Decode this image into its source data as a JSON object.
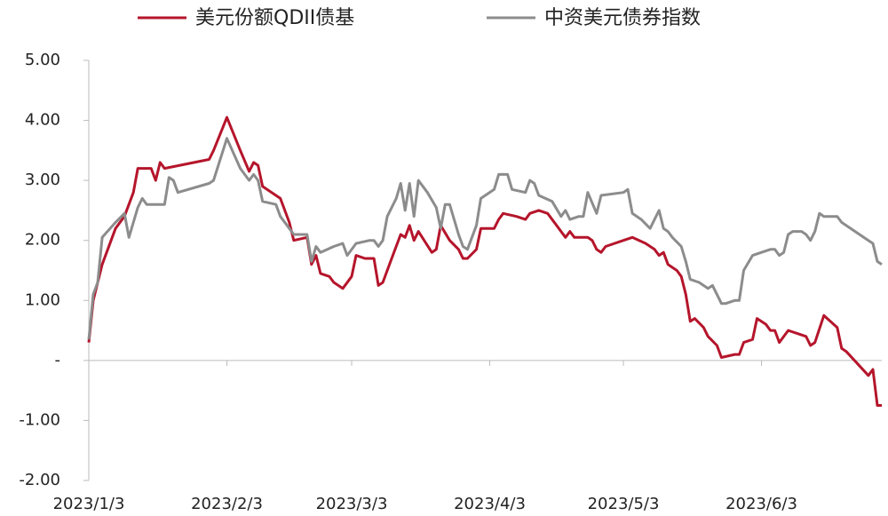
{
  "chart_data": {
    "type": "line",
    "xlim": [
      "2023/1/3",
      "2023/6/30"
    ],
    "xticks": [
      "2023/1/3",
      "2023/2/3",
      "2023/3/3",
      "2023/4/3",
      "2023/5/3",
      "2023/6/3"
    ],
    "ylim": [
      -2,
      5
    ],
    "yticks": [
      {
        "value": 5,
        "label": "5.00"
      },
      {
        "value": 4,
        "label": "4.00"
      },
      {
        "value": 3,
        "label": "3.00"
      },
      {
        "value": 2,
        "label": "2.00"
      },
      {
        "value": 1,
        "label": "1.00"
      },
      {
        "value": 0,
        "label": "-"
      },
      {
        "value": -1,
        "label": "-1.00"
      },
      {
        "value": -2,
        "label": "-2.00"
      }
    ],
    "legend": "top",
    "series": [
      {
        "name": "美元份额QDII债基",
        "color": "#b5152b",
        "x": [
          "2023/1/3",
          "2023/1/4",
          "2023/1/6",
          "2023/1/9",
          "2023/1/11",
          "2023/1/13",
          "2023/1/14",
          "2023/1/17",
          "2023/1/18",
          "2023/1/19",
          "2023/1/20",
          "2023/1/30",
          "2023/1/31",
          "2023/2/3",
          "2023/2/6",
          "2023/2/8",
          "2023/2/9",
          "2023/2/10",
          "2023/2/11",
          "2023/2/14",
          "2023/2/15",
          "2023/2/17",
          "2023/2/18",
          "2023/2/21",
          "2023/2/22",
          "2023/2/23",
          "2023/2/24",
          "2023/2/26",
          "2023/2/27",
          "2023/3/1",
          "2023/3/3",
          "2023/3/4",
          "2023/3/6",
          "2023/3/8",
          "2023/3/9",
          "2023/3/10",
          "2023/3/12",
          "2023/3/14",
          "2023/3/15",
          "2023/3/16",
          "2023/3/17",
          "2023/3/18",
          "2023/3/21",
          "2023/3/22",
          "2023/3/23",
          "2023/3/25",
          "2023/3/27",
          "2023/3/28",
          "2023/3/29",
          "2023/3/31",
          "2023/4/1",
          "2023/4/4",
          "2023/4/5",
          "2023/4/6",
          "2023/4/9",
          "2023/4/11",
          "2023/4/12",
          "2023/4/14",
          "2023/4/16",
          "2023/4/18",
          "2023/4/20",
          "2023/4/21",
          "2023/4/22",
          "2023/4/25",
          "2023/4/26",
          "2023/4/27",
          "2023/4/28",
          "2023/4/29",
          "2023/5/3",
          "2023/5/5",
          "2023/5/8",
          "2023/5/10",
          "2023/5/11",
          "2023/5/12",
          "2023/5/13",
          "2023/5/15",
          "2023/5/16",
          "2023/5/17",
          "2023/5/18",
          "2023/5/19",
          "2023/5/21",
          "2023/5/22",
          "2023/5/24",
          "2023/5/25",
          "2023/5/28",
          "2023/5/29",
          "2023/5/30",
          "2023/6/1",
          "2023/6/2",
          "2023/6/4",
          "2023/6/5",
          "2023/6/6",
          "2023/6/7",
          "2023/6/9",
          "2023/6/11",
          "2023/6/13",
          "2023/6/14",
          "2023/6/15",
          "2023/6/17",
          "2023/6/20",
          "2023/6/21",
          "2023/6/22",
          "2023/6/27",
          "2023/6/28",
          "2023/6/29",
          "2023/6/30"
        ],
        "values": [
          0.3,
          1.0,
          1.6,
          2.2,
          2.4,
          2.8,
          3.2,
          3.2,
          3.0,
          3.3,
          3.2,
          3.35,
          3.5,
          4.05,
          3.5,
          3.15,
          3.3,
          3.25,
          2.9,
          2.75,
          2.7,
          2.3,
          2.0,
          2.05,
          1.6,
          1.75,
          1.45,
          1.4,
          1.3,
          1.2,
          1.4,
          1.75,
          1.7,
          1.7,
          1.25,
          1.3,
          1.7,
          2.1,
          2.05,
          2.25,
          2.0,
          2.15,
          1.8,
          1.85,
          2.25,
          2.0,
          1.85,
          1.7,
          1.7,
          1.85,
          2.2,
          2.2,
          2.35,
          2.45,
          2.4,
          2.35,
          2.45,
          2.5,
          2.45,
          2.25,
          2.05,
          2.15,
          2.05,
          2.05,
          2.0,
          1.85,
          1.8,
          1.9,
          2.0,
          2.05,
          1.95,
          1.85,
          1.75,
          1.8,
          1.6,
          1.5,
          1.4,
          1.1,
          0.65,
          0.7,
          0.55,
          0.4,
          0.25,
          0.05,
          0.1,
          0.1,
          0.3,
          0.35,
          0.7,
          0.6,
          0.5,
          0.5,
          0.3,
          0.5,
          0.45,
          0.4,
          0.25,
          0.3,
          0.75,
          0.55,
          0.2,
          0.15,
          -0.25,
          -0.15,
          -0.75,
          -0.75
        ]
      },
      {
        "name": "中资美元债券指数",
        "color": "#8c8c8c",
        "x": [
          "2023/1/3",
          "2023/1/4",
          "2023/1/5",
          "2023/1/6",
          "2023/1/9",
          "2023/1/11",
          "2023/1/12",
          "2023/1/14",
          "2023/1/15",
          "2023/1/16",
          "2023/1/19",
          "2023/1/20",
          "2023/1/21",
          "2023/1/22",
          "2023/1/23",
          "2023/1/30",
          "2023/1/31",
          "2023/2/3",
          "2023/2/6",
          "2023/2/8",
          "2023/2/9",
          "2023/2/10",
          "2023/2/11",
          "2023/2/14",
          "2023/2/15",
          "2023/2/17",
          "2023/2/18",
          "2023/2/21",
          "2023/2/22",
          "2023/2/23",
          "2023/2/24",
          "2023/2/27",
          "2023/3/1",
          "2023/3/2",
          "2023/3/4",
          "2023/3/7",
          "2023/3/8",
          "2023/3/9",
          "2023/3/10",
          "2023/3/11",
          "2023/3/13",
          "2023/3/14",
          "2023/3/15",
          "2023/3/16",
          "2023/3/17",
          "2023/3/18",
          "2023/3/20",
          "2023/3/22",
          "2023/3/23",
          "2023/3/24",
          "2023/3/25",
          "2023/3/27",
          "2023/3/28",
          "2023/3/29",
          "2023/3/31",
          "2023/4/1",
          "2023/4/4",
          "2023/4/5",
          "2023/4/7",
          "2023/4/8",
          "2023/4/11",
          "2023/4/12",
          "2023/4/13",
          "2023/4/14",
          "2023/4/17",
          "2023/4/19",
          "2023/4/20",
          "2023/4/21",
          "2023/4/23",
          "2023/4/24",
          "2023/4/25",
          "2023/4/27",
          "2023/4/28",
          "2023/5/3",
          "2023/5/4",
          "2023/5/5",
          "2023/5/7",
          "2023/5/9",
          "2023/5/10",
          "2023/5/11",
          "2023/5/12",
          "2023/5/13",
          "2023/5/14",
          "2023/5/16",
          "2023/5/17",
          "2023/5/18",
          "2023/5/20",
          "2023/5/22",
          "2023/5/23",
          "2023/5/25",
          "2023/5/26",
          "2023/5/28",
          "2023/5/29",
          "2023/5/30",
          "2023/6/1",
          "2023/6/3",
          "2023/6/5",
          "2023/6/6",
          "2023/6/7",
          "2023/6/8",
          "2023/6/9",
          "2023/6/10",
          "2023/6/12",
          "2023/6/13",
          "2023/6/14",
          "2023/6/15",
          "2023/6/16",
          "2023/6/17",
          "2023/6/20",
          "2023/6/21",
          "2023/6/27",
          "2023/6/28",
          "2023/6/29",
          "2023/6/30"
        ],
        "values": [
          0.35,
          1.1,
          1.3,
          2.05,
          2.3,
          2.45,
          2.05,
          2.55,
          2.7,
          2.6,
          2.6,
          2.6,
          3.05,
          3.0,
          2.8,
          2.95,
          3.0,
          3.7,
          3.2,
          3.0,
          3.1,
          3.0,
          2.65,
          2.6,
          2.4,
          2.2,
          2.1,
          2.1,
          1.65,
          1.9,
          1.8,
          1.9,
          1.95,
          1.75,
          1.95,
          2.0,
          2.0,
          1.9,
          2.0,
          2.4,
          2.7,
          2.95,
          2.5,
          2.95,
          2.4,
          3.0,
          2.8,
          2.55,
          2.2,
          2.6,
          2.6,
          2.1,
          1.9,
          1.85,
          2.25,
          2.7,
          2.85,
          3.1,
          3.1,
          2.85,
          2.8,
          3.0,
          2.95,
          2.75,
          2.65,
          2.4,
          2.5,
          2.35,
          2.4,
          2.4,
          2.8,
          2.45,
          2.75,
          2.8,
          2.85,
          2.45,
          2.35,
          2.2,
          2.35,
          2.5,
          2.2,
          2.15,
          2.05,
          1.9,
          1.65,
          1.35,
          1.3,
          1.2,
          1.25,
          0.95,
          0.95,
          1.0,
          1.0,
          1.5,
          1.75,
          1.8,
          1.85,
          1.85,
          1.75,
          1.8,
          2.1,
          2.15,
          2.15,
          2.1,
          2.0,
          2.15,
          2.45,
          2.4,
          2.4,
          2.3,
          2.0,
          1.95,
          1.65,
          1.6
        ]
      }
    ]
  }
}
